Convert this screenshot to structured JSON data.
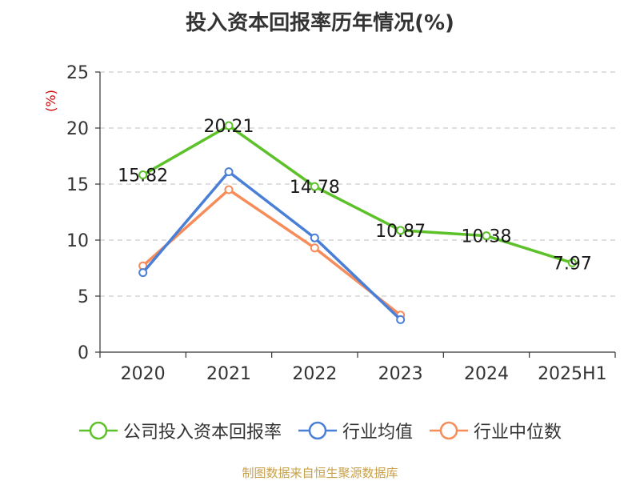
{
  "chart_data": {
    "type": "line",
    "title": "投入资本回报率历年情况(%)",
    "ylabel": "(%)",
    "xlabel": "",
    "categories": [
      "2020",
      "2021",
      "2022",
      "2023",
      "2024",
      "2025H1"
    ],
    "ylim": [
      0,
      25
    ],
    "yticks": [
      0,
      5,
      10,
      15,
      20,
      25
    ],
    "grid": true,
    "legend_position": "bottom",
    "series": [
      {
        "name": "公司投入资本回报率",
        "color": "#5dc12a",
        "values": [
          15.82,
          20.21,
          14.78,
          10.87,
          10.38,
          7.97
        ],
        "labels": [
          "15.82",
          "20.21",
          "14.78",
          "10.87",
          "10.38",
          "7.97"
        ]
      },
      {
        "name": "行业均值",
        "color": "#4a7fd8",
        "values": [
          7.1,
          16.1,
          10.2,
          2.9,
          null,
          null
        ]
      },
      {
        "name": "行业中位数",
        "color": "#f58c5a",
        "values": [
          7.7,
          14.5,
          9.3,
          3.3,
          null,
          null
        ]
      }
    ]
  },
  "source": "制图数据来自恒生聚源数据库"
}
